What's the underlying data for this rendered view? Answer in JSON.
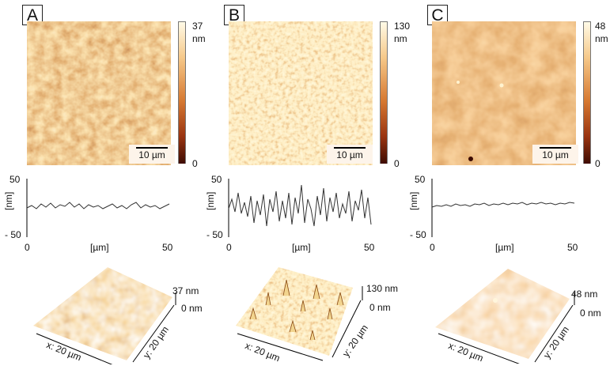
{
  "panels": [
    {
      "letter": "A",
      "colorbar_max": "37",
      "colorbar_unit": "nm",
      "colorbar_min": "0",
      "scale_bar": "10 µm",
      "profile": {
        "y_max": "50",
        "y_min": "- 50",
        "y_unit": "[nm]",
        "x_min": "0",
        "x_max": "50",
        "x_unit": "[µm]"
      },
      "view3d": {
        "z_max": "37 nm",
        "z_min": "0 nm",
        "x_axis": "x: 20 µm",
        "y_axis": "y: 20 µm"
      }
    },
    {
      "letter": "B",
      "colorbar_max": "130",
      "colorbar_unit": "nm",
      "colorbar_min": "0",
      "scale_bar": "10 µm",
      "profile": {
        "y_max": "50",
        "y_min": "- 50",
        "y_unit": "[nm]",
        "x_min": "0",
        "x_max": "50",
        "x_unit": "[µm]"
      },
      "view3d": {
        "z_max": "130 nm",
        "z_min": "0 nm",
        "x_axis": "x: 20 µm",
        "y_axis": "y: 20 µm"
      }
    },
    {
      "letter": "C",
      "colorbar_max": "48",
      "colorbar_unit": "nm",
      "colorbar_min": "0",
      "scale_bar": "10 µm",
      "profile": {
        "y_max": "50",
        "y_min": "- 50",
        "y_unit": "[nm]",
        "x_min": "0",
        "x_max": "50",
        "x_unit": "[µm]"
      },
      "view3d": {
        "z_max": "48 nm",
        "z_min": "0 nm",
        "x_axis": "x: 20 µm",
        "y_axis": "y: 20 µm"
      }
    }
  ],
  "colors": {
    "afm_light": "#f6d9a8",
    "afm_mid": "#d9883d",
    "afm_dark": "#7a2d10",
    "colorbar_top": "#fff7e0",
    "colorbar_bottom": "#3a0a02"
  }
}
